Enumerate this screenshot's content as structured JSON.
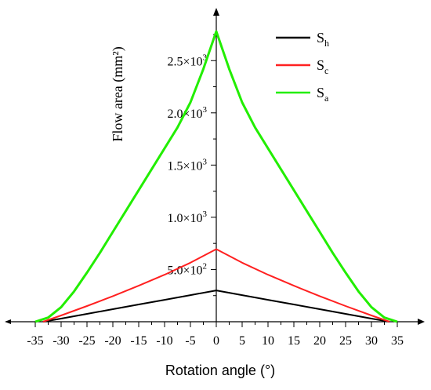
{
  "chart_data": {
    "type": "line",
    "xlabel": "Rotation angle (°)",
    "ylabel": "Flow area (mm²)",
    "xlim": [
      -37,
      37
    ],
    "ylim": [
      0,
      2850
    ],
    "xticks": [
      -35,
      -30,
      -25,
      -20,
      -15,
      -10,
      -5,
      0,
      5,
      10,
      15,
      20,
      25,
      30,
      35
    ],
    "xtick_labels": [
      "-35",
      "-30",
      "-25",
      "-20",
      "-15",
      "-10",
      "-5",
      "0",
      "5",
      "10",
      "15",
      "20",
      "25",
      "30",
      "35"
    ],
    "yticks": [
      500,
      1000,
      1500,
      2000,
      2500
    ],
    "ytick_labels": [
      {
        "mantissa": "5.0",
        "exp": "2"
      },
      {
        "mantissa": "1.0",
        "exp": "3"
      },
      {
        "mantissa": "1.5",
        "exp": "3"
      },
      {
        "mantissa": "2.0",
        "exp": "3"
      },
      {
        "mantissa": "2.5",
        "exp": "3"
      }
    ],
    "grid": false,
    "legend_position": "top-right",
    "series": [
      {
        "name": "S_h",
        "label_main": "S",
        "label_sub": "h",
        "color": "#000000",
        "x": [
          -33.5,
          -30,
          -25,
          -20,
          -15,
          -10,
          -5,
          0,
          5,
          10,
          15,
          20,
          25,
          30,
          33.5
        ],
        "y": [
          0,
          30,
          75,
          120,
          165,
          210,
          255,
          300,
          255,
          210,
          165,
          120,
          75,
          30,
          0
        ]
      },
      {
        "name": "S_c",
        "label_main": "S",
        "label_sub": "c",
        "color": "#ff2020",
        "x": [
          -33.5,
          -30,
          -25,
          -20,
          -15,
          -10,
          -5,
          0,
          5,
          10,
          15,
          20,
          25,
          30,
          33.5
        ],
        "y": [
          0,
          60,
          150,
          245,
          345,
          450,
          565,
          695,
          565,
          450,
          345,
          245,
          150,
          60,
          0
        ]
      },
      {
        "name": "S_a",
        "label_main": "S",
        "label_sub": "a",
        "color": "#22ee00",
        "x": [
          -35,
          -32.5,
          -30,
          -27.5,
          -25,
          -22.5,
          -20,
          -17.5,
          -15,
          -12.5,
          -10,
          -7.5,
          -5,
          -2.5,
          0,
          2.5,
          5,
          7.5,
          10,
          12.5,
          15,
          17.5,
          20,
          22.5,
          25,
          27.5,
          30,
          32.5,
          35
        ],
        "y": [
          0,
          40,
          140,
          290,
          470,
          660,
          860,
          1060,
          1260,
          1460,
          1660,
          1860,
          2100,
          2420,
          2780,
          2420,
          2100,
          1860,
          1660,
          1460,
          1260,
          1060,
          860,
          660,
          470,
          290,
          140,
          40,
          0
        ]
      }
    ]
  }
}
